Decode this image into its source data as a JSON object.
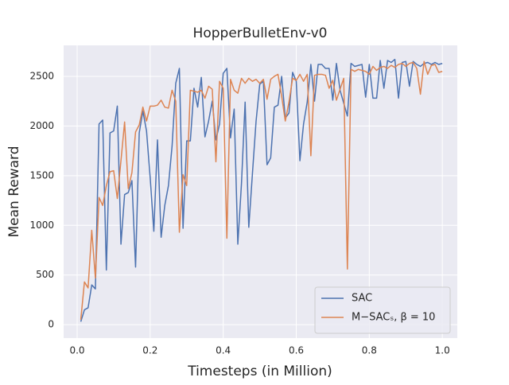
{
  "chart_data": {
    "type": "line",
    "title": "HopperBulletEnv-v0",
    "x_label": "Timesteps (in Million)",
    "y_label": "Mean Reward",
    "x": [
      0.01,
      0.02,
      0.03,
      0.04,
      0.05,
      0.06,
      0.07,
      0.08,
      0.09,
      0.1,
      0.11,
      0.12,
      0.13,
      0.14,
      0.15,
      0.16,
      0.17,
      0.18,
      0.19,
      0.2,
      0.21,
      0.22,
      0.23,
      0.24,
      0.25,
      0.26,
      0.27,
      0.28,
      0.29,
      0.3,
      0.31,
      0.32,
      0.33,
      0.34,
      0.35,
      0.36,
      0.37,
      0.38,
      0.39,
      0.4,
      0.41,
      0.42,
      0.43,
      0.44,
      0.45,
      0.46,
      0.47,
      0.48,
      0.49,
      0.5,
      0.51,
      0.52,
      0.53,
      0.54,
      0.55,
      0.56,
      0.57,
      0.58,
      0.59,
      0.6,
      0.61,
      0.62,
      0.63,
      0.64,
      0.65,
      0.66,
      0.67,
      0.68,
      0.69,
      0.7,
      0.71,
      0.72,
      0.73,
      0.74,
      0.75,
      0.76,
      0.77,
      0.78,
      0.79,
      0.8,
      0.81,
      0.82,
      0.83,
      0.84,
      0.85,
      0.86,
      0.87,
      0.88,
      0.89,
      0.9,
      0.91,
      0.92,
      0.93,
      0.94,
      0.95,
      0.96,
      0.97,
      0.98,
      0.99,
      1.0
    ],
    "series": [
      {
        "name": "SAC",
        "color": "#4c72b0",
        "values": [
          30,
          150,
          170,
          400,
          360,
          2020,
          2060,
          550,
          1930,
          1950,
          2200,
          810,
          1310,
          1330,
          1450,
          580,
          1930,
          2150,
          1950,
          1480,
          940,
          1860,
          880,
          1200,
          1400,
          1800,
          2430,
          2580,
          970,
          1850,
          1850,
          2380,
          2190,
          2490,
          1890,
          2050,
          2250,
          1860,
          2020,
          2530,
          2580,
          1880,
          2170,
          810,
          1420,
          2240,
          980,
          1520,
          2050,
          2420,
          2450,
          1610,
          1680,
          2190,
          2210,
          2500,
          2080,
          2130,
          2540,
          2450,
          1650,
          2020,
          2240,
          2620,
          2250,
          2620,
          2620,
          2580,
          2580,
          2260,
          2630,
          2360,
          2230,
          2100,
          2630,
          2600,
          2610,
          2620,
          2290,
          2620,
          2280,
          2280,
          2660,
          2380,
          2660,
          2640,
          2670,
          2280,
          2640,
          2650,
          2400,
          2650,
          2620,
          2600,
          2630,
          2640,
          2620,
          2640,
          2620,
          2630
        ]
      },
      {
        "name": "M−SACₛ, β = 10",
        "color": "#dd8452",
        "values": [
          50,
          430,
          370,
          950,
          470,
          1280,
          1200,
          1400,
          1540,
          1550,
          1270,
          1650,
          2040,
          1370,
          1530,
          1940,
          2010,
          2190,
          2050,
          2200,
          2200,
          2210,
          2260,
          2190,
          2180,
          2360,
          2250,
          930,
          1510,
          1400,
          2360,
          2350,
          2340,
          2360,
          2280,
          2400,
          2370,
          1640,
          2450,
          2380,
          870,
          2470,
          2360,
          2330,
          2480,
          2430,
          2480,
          2450,
          2470,
          2430,
          2470,
          2270,
          2470,
          2500,
          2520,
          2300,
          2050,
          2240,
          2480,
          2460,
          2520,
          2450,
          2520,
          1700,
          2510,
          2520,
          2520,
          2510,
          2380,
          2460,
          2260,
          2370,
          2480,
          560,
          2570,
          2550,
          2570,
          2560,
          2550,
          2520,
          2600,
          2560,
          2590,
          2600,
          2580,
          2610,
          2590,
          2620,
          2630,
          2600,
          2630,
          2640,
          2580,
          2320,
          2650,
          2520,
          2610,
          2620,
          2540,
          2550
        ]
      }
    ],
    "xlim": [
      -0.037,
      1.041
    ],
    "ylim": [
      -135,
      2812
    ],
    "xticks": [
      {
        "value": 0,
        "label": "0.0"
      },
      0.2,
      0.4,
      0.6,
      0.8,
      {
        "value": 1,
        "label": "1.0"
      }
    ],
    "yticks": [
      0,
      500,
      1000,
      1500,
      2000,
      2500
    ],
    "grid": true,
    "legend": "lower right"
  }
}
